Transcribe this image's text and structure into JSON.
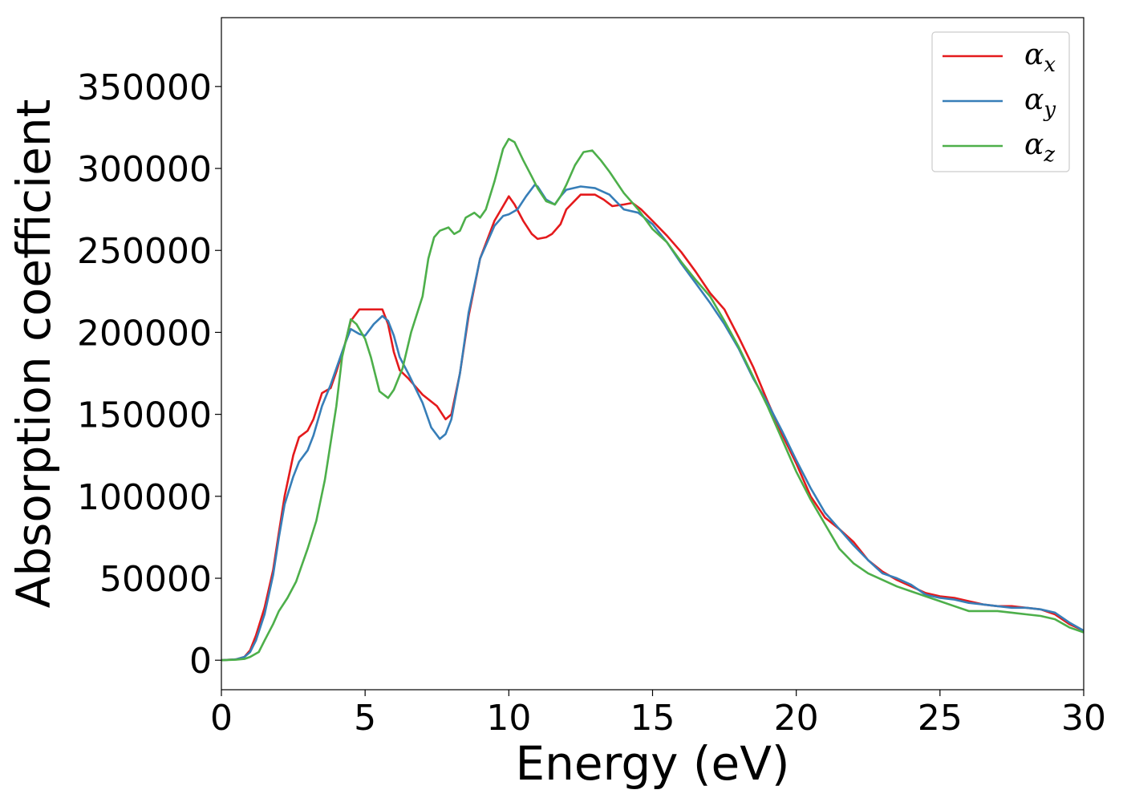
{
  "chart_data": {
    "type": "line",
    "title": "",
    "xlabel": "Energy (eV)",
    "ylabel": "Absorption coefficient",
    "xlim": [
      0,
      30
    ],
    "ylim": [
      -18000,
      392000
    ],
    "xticks": [
      0,
      5,
      10,
      15,
      20,
      25,
      30
    ],
    "yticks": [
      0,
      50000,
      100000,
      150000,
      200000,
      250000,
      300000,
      350000
    ],
    "grid": false,
    "legend_position": "top-right",
    "series": [
      {
        "name": "α",
        "subscript": "x",
        "color": "#e41a1c",
        "x": [
          0,
          0.5,
          0.8,
          1.0,
          1.2,
          1.5,
          1.8,
          2.0,
          2.2,
          2.5,
          2.7,
          3.0,
          3.2,
          3.5,
          3.8,
          4.0,
          4.3,
          4.5,
          4.8,
          5.0,
          5.3,
          5.6,
          5.8,
          6.0,
          6.2,
          6.5,
          7.0,
          7.5,
          7.8,
          8.0,
          8.3,
          8.6,
          9.0,
          9.5,
          9.8,
          10.0,
          10.2,
          10.5,
          10.8,
          11.0,
          11.3,
          11.5,
          11.8,
          12.0,
          12.5,
          13.0,
          13.3,
          13.6,
          14.0,
          14.3,
          14.6,
          15.0,
          15.5,
          16.0,
          16.5,
          17.0,
          17.5,
          18.0,
          18.5,
          19.0,
          19.5,
          20.0,
          20.5,
          21.0,
          21.5,
          22.0,
          22.5,
          23.0,
          23.5,
          24.0,
          24.5,
          25.0,
          25.5,
          26.0,
          26.5,
          27.0,
          27.5,
          28.0,
          28.5,
          29.0,
          29.5,
          30.0
        ],
        "y": [
          0,
          500,
          2000,
          6000,
          15000,
          32000,
          55000,
          78000,
          100000,
          125000,
          136000,
          140000,
          147000,
          163000,
          166000,
          176000,
          193000,
          207000,
          214000,
          214000,
          214000,
          214000,
          205000,
          188000,
          177000,
          172000,
          162000,
          155000,
          147000,
          150000,
          175000,
          210000,
          245000,
          268000,
          277000,
          283000,
          278000,
          268000,
          260000,
          257000,
          258000,
          260000,
          266000,
          275000,
          284000,
          284000,
          281000,
          277000,
          278000,
          279000,
          275000,
          268000,
          259000,
          249000,
          237000,
          224000,
          214000,
          197000,
          179000,
          158000,
          138000,
          120000,
          100000,
          87000,
          80000,
          72000,
          61000,
          54000,
          49000,
          45000,
          41000,
          39000,
          38000,
          36000,
          34000,
          33000,
          33000,
          32000,
          31000,
          28000,
          22000,
          18000
        ]
      },
      {
        "name": "α",
        "subscript": "y",
        "color": "#377eb8",
        "x": [
          0,
          0.5,
          0.8,
          1.0,
          1.2,
          1.5,
          1.8,
          2.0,
          2.2,
          2.5,
          2.7,
          3.0,
          3.2,
          3.5,
          3.8,
          4.0,
          4.3,
          4.5,
          4.8,
          5.0,
          5.3,
          5.6,
          5.8,
          6.0,
          6.2,
          6.5,
          7.0,
          7.3,
          7.6,
          7.8,
          8.0,
          8.3,
          8.6,
          9.0,
          9.5,
          9.8,
          10.0,
          10.3,
          10.6,
          10.9,
          11.0,
          11.3,
          11.6,
          11.8,
          12.0,
          12.5,
          13.0,
          13.5,
          14.0,
          14.5,
          15.0,
          15.5,
          16.0,
          16.5,
          17.0,
          17.5,
          18.0,
          18.5,
          19.0,
          19.5,
          20.0,
          20.5,
          21.0,
          21.5,
          22.0,
          22.5,
          23.0,
          23.5,
          24.0,
          24.5,
          25.0,
          25.5,
          26.0,
          26.5,
          27.0,
          27.5,
          28.0,
          28.5,
          29.0,
          29.5,
          30.0
        ],
        "y": [
          0,
          500,
          2000,
          5000,
          12000,
          28000,
          52000,
          75000,
          95000,
          112000,
          121000,
          128000,
          137000,
          155000,
          168000,
          178000,
          193000,
          202000,
          199000,
          198000,
          205000,
          210000,
          207000,
          198000,
          185000,
          175000,
          157000,
          142000,
          135000,
          138000,
          147000,
          175000,
          212000,
          245000,
          265000,
          271000,
          272000,
          275000,
          283000,
          290000,
          289000,
          281000,
          278000,
          283000,
          287000,
          289000,
          288000,
          284000,
          275000,
          273000,
          266000,
          255000,
          242000,
          230000,
          218000,
          205000,
          190000,
          172000,
          157000,
          140000,
          122000,
          105000,
          90000,
          80000,
          70000,
          61000,
          53000,
          50000,
          46000,
          40000,
          38000,
          37000,
          35000,
          34000,
          33000,
          32000,
          32000,
          31000,
          29000,
          23000,
          18000
        ]
      },
      {
        "name": "α",
        "subscript": "z",
        "color": "#4daf4a",
        "x": [
          0,
          0.5,
          0.8,
          1.0,
          1.3,
          1.5,
          1.8,
          2.0,
          2.3,
          2.6,
          2.8,
          3.0,
          3.3,
          3.6,
          4.0,
          4.2,
          4.5,
          4.7,
          5.0,
          5.2,
          5.5,
          5.8,
          6.0,
          6.3,
          6.6,
          7.0,
          7.2,
          7.4,
          7.6,
          7.9,
          8.1,
          8.3,
          8.5,
          8.8,
          9.0,
          9.2,
          9.5,
          9.8,
          10.0,
          10.2,
          10.5,
          10.8,
          11.0,
          11.3,
          11.6,
          11.8,
          12.0,
          12.3,
          12.6,
          12.9,
          13.2,
          13.5,
          14.0,
          14.5,
          15.0,
          15.5,
          16.0,
          16.5,
          17.0,
          17.5,
          18.0,
          18.5,
          19.0,
          19.5,
          20.0,
          20.5,
          21.0,
          21.5,
          22.0,
          22.5,
          23.0,
          23.5,
          24.0,
          24.5,
          25.0,
          25.5,
          26.0,
          26.5,
          27.0,
          27.5,
          28.0,
          28.5,
          29.0,
          29.5,
          30.0
        ],
        "y": [
          0,
          300,
          800,
          2000,
          5000,
          12000,
          22000,
          30000,
          38000,
          48000,
          58000,
          68000,
          85000,
          110000,
          155000,
          185000,
          208000,
          205000,
          196000,
          185000,
          164000,
          160000,
          165000,
          178000,
          200000,
          222000,
          245000,
          258000,
          262000,
          264000,
          260000,
          262000,
          270000,
          273000,
          270000,
          275000,
          292000,
          312000,
          318000,
          316000,
          305000,
          295000,
          288000,
          280000,
          278000,
          283000,
          290000,
          302000,
          310000,
          311000,
          305000,
          298000,
          285000,
          275000,
          263000,
          255000,
          243000,
          232000,
          222000,
          207000,
          191000,
          173000,
          155000,
          135000,
          115000,
          98000,
          83000,
          68000,
          59000,
          53000,
          49000,
          45000,
          42000,
          39000,
          36000,
          33000,
          30000,
          30000,
          30000,
          29000,
          28000,
          27000,
          25000,
          20000,
          17000
        ]
      }
    ]
  }
}
